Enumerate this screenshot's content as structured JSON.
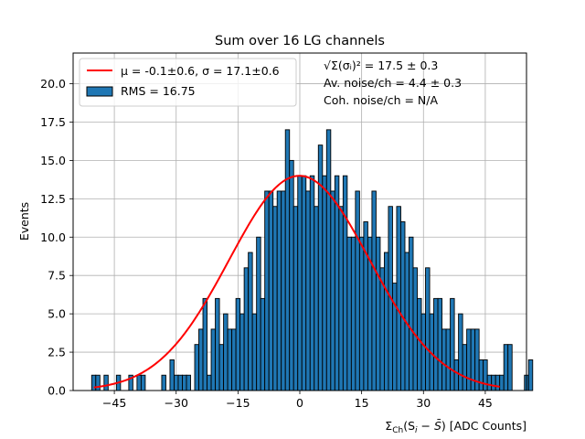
{
  "chart_data": {
    "type": "bar",
    "title": "Sum over 16 LG channels",
    "xlabel": "Σ_Ch(S_i − S̄) [ADC Counts]",
    "xlabel_parts": {
      "sigma": "Σ",
      "sub": "Ch",
      "rest": "(S",
      "i": "i",
      "minus": " − ",
      "sbar": "S̄",
      "units": ") [ADC Counts]"
    },
    "ylabel": "Events",
    "xlim": [
      -55,
      55
    ],
    "ylim": [
      0,
      22
    ],
    "grid": true,
    "xticks": [
      -45,
      -30,
      -15,
      0,
      15,
      30,
      45
    ],
    "xtick_labels": [
      "−45",
      "−30",
      "−15",
      "0",
      "15",
      "30",
      "45"
    ],
    "yticks": [
      0,
      2.5,
      5,
      7.5,
      10,
      12.5,
      15,
      17.5,
      20
    ],
    "ytick_labels": [
      "0.0",
      "2.5",
      "5.0",
      "7.5",
      "10.0",
      "12.5",
      "15.0",
      "17.5",
      "20.0"
    ],
    "bin_start": -50.5,
    "bin_width": 1,
    "counts": [
      1,
      1,
      0,
      1,
      0,
      0,
      1,
      0,
      0,
      1,
      0,
      1,
      1,
      0,
      0,
      0,
      0,
      1,
      0,
      2,
      1,
      1,
      1,
      1,
      0,
      3,
      4,
      6,
      1,
      4,
      6,
      3,
      5,
      4,
      4,
      6,
      5,
      8,
      9,
      5,
      10,
      6,
      13,
      13,
      12,
      13,
      13,
      17,
      15,
      12,
      14,
      14,
      13,
      14,
      12,
      16,
      14,
      17,
      13,
      14,
      12,
      14,
      10,
      10,
      13,
      10,
      11,
      10,
      13,
      10,
      8,
      9,
      12,
      7,
      12,
      11,
      9,
      10,
      8,
      6,
      5,
      8,
      5,
      6,
      6,
      4,
      4,
      6,
      2,
      5,
      3,
      4,
      4,
      4,
      2,
      2,
      1,
      1,
      1,
      1,
      3,
      3,
      0,
      0,
      0,
      1,
      2
    ],
    "fit": {
      "type": "gaussian",
      "amplitude": 14.0,
      "mu": -0.1,
      "sigma": 17.1,
      "x_range": [
        -50,
        48.5
      ]
    },
    "legend_position": "top-left",
    "series": [
      {
        "name": "μ = -0.1±0.6, σ = 17.1±0.6",
        "kind": "fit-line",
        "color": "#ff0000"
      },
      {
        "name": "RMS = 16.75",
        "kind": "histogram",
        "color": "#1f77b4"
      }
    ],
    "legend": {
      "fit_label": "μ = -0.1±0.6, σ = 17.1±0.6",
      "hist_label": "RMS = 16.75"
    },
    "annotations": {
      "line1_formula": "√Σ(σᵢ)²",
      "line1_value": " = 17.5 ± 0.3",
      "line2": "Av. noise/ch  = 4.4 ± 0.3",
      "line3": "Coh. noise/ch = N/A"
    }
  },
  "colors": {
    "bar_fill": "#1f77b4",
    "bar_edge": "#000000",
    "fit_line": "#ff0000",
    "grid": "#b0b0b0"
  }
}
